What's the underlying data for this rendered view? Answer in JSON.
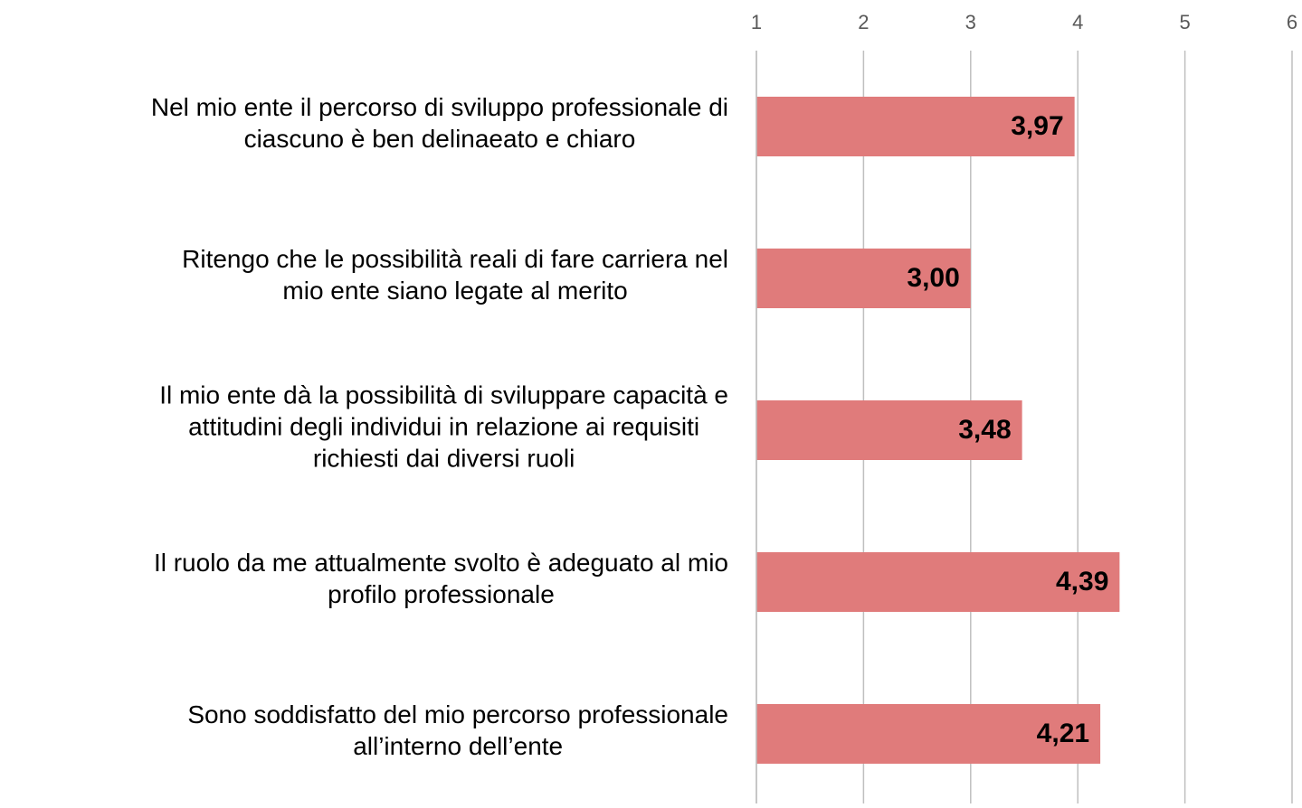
{
  "chart_data": {
    "type": "barh",
    "categories": [
      [
        "Nel mio ente il percorso di sviluppo professionale di",
        "ciascuno è ben delinaeato e chiaro"
      ],
      [
        "Ritengo che le possibilità reali di fare carriera nel",
        "mio ente siano legate al merito"
      ],
      [
        "Il mio ente dà la possibilità di sviluppare capacità e",
        "attitudini degli individui in relazione ai requisiti",
        "richiesti dai diversi ruoli"
      ],
      [
        "Il ruolo da me attualmente svolto è adeguato al mio",
        "profilo professionale"
      ],
      [
        "Sono soddisfatto del mio percorso professionale",
        "all’interno dell’ente"
      ]
    ],
    "values": [
      3.97,
      3.0,
      3.48,
      4.39,
      4.21
    ],
    "value_labels": [
      "3,97",
      "3,00",
      "3,48",
      "4,39",
      "4,21"
    ],
    "color": "#e07b7b",
    "xlim": [
      1,
      6
    ],
    "xticks": [
      1,
      2,
      3,
      4,
      5,
      6
    ],
    "grid": true
  }
}
